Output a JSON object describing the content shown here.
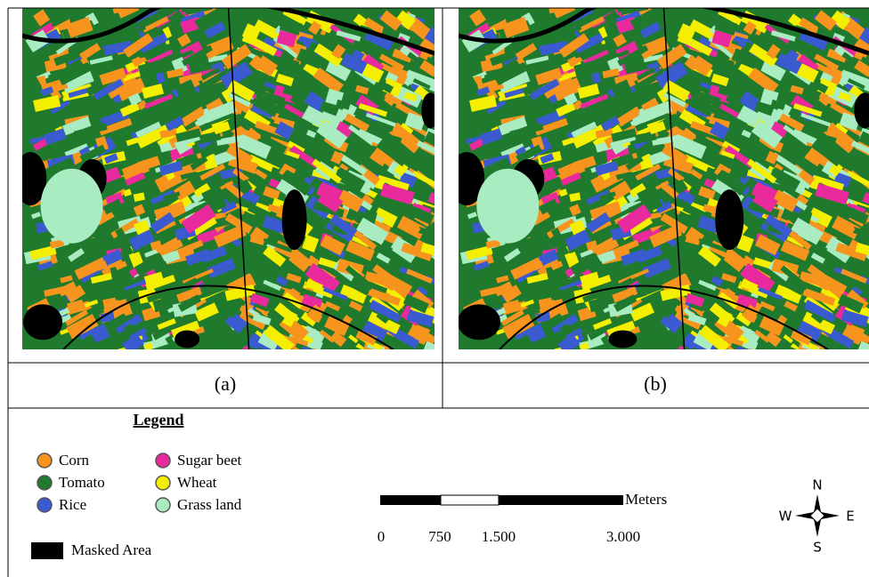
{
  "panels": [
    {
      "label": "(a)"
    },
    {
      "label": "(b)"
    }
  ],
  "legend": {
    "title": "Legend",
    "items": [
      {
        "label": "Corn",
        "color": "#f7941d"
      },
      {
        "label": "Tomato",
        "color": "#1f7a2e"
      },
      {
        "label": "Rice",
        "color": "#3a5bd0"
      },
      {
        "label": "Sugar beet",
        "color": "#e82a9c"
      },
      {
        "label": "Wheat",
        "color": "#f4ee00"
      },
      {
        "label": "Grass land",
        "color": "#a9ecc2"
      }
    ],
    "masked": {
      "label": "Masked Area",
      "color": "#000000"
    }
  },
  "scale_bar": {
    "unit": "Meters",
    "labels": [
      "0",
      "750",
      "1.500",
      "3.000"
    ]
  },
  "compass": {
    "north": "N",
    "south": "S",
    "west": "W",
    "east": "E"
  }
}
